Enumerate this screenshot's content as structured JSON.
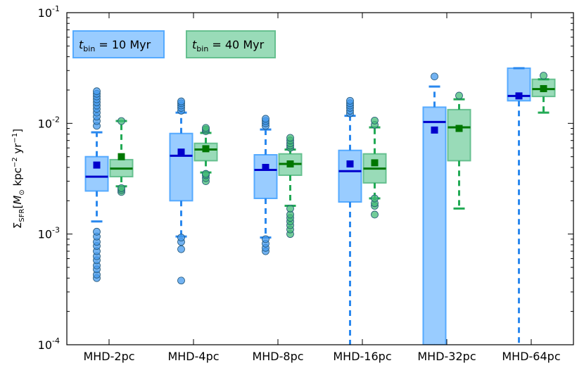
{
  "chart_data": {
    "type": "box",
    "scale": "log",
    "ylim": [
      0.0001,
      0.1
    ],
    "yticks": [
      {
        "value": 0.0001,
        "base": "10",
        "exp": "-4"
      },
      {
        "value": 0.001,
        "base": "10",
        "exp": "-3"
      },
      {
        "value": 0.01,
        "base": "10",
        "exp": "-2"
      },
      {
        "value": 0.1,
        "base": "10",
        "exp": "-1"
      }
    ],
    "ylabel": {
      "sigma": "Σ",
      "sigma_sub": "SFR",
      "open": "[",
      "m": "M",
      "sun": "⊙",
      "unit1": " kpc",
      "exp1": "−2",
      "unit2": " yr",
      "exp2": "−1",
      "close": "]"
    },
    "categories": [
      "MHD-2pc",
      "MHD-4pc",
      "MHD-8pc",
      "MHD-16pc",
      "MHD-32pc",
      "MHD-64pc"
    ],
    "legend": [
      {
        "t": "t",
        "sub": "bin",
        "rest": " = 10 Myr",
        "color": "#3399ff"
      },
      {
        "t": "t",
        "sub": "bin",
        "rest": " = 40 Myr",
        "color": "#33aa66"
      }
    ],
    "series": [
      {
        "name_key": "legend.0",
        "fill": "#99ccff",
        "edge": "#55aaff",
        "line": "#2a88ee",
        "median_color": "#0000cc",
        "mean_color": "#0000cc",
        "flier_color": "#4499ee",
        "boxes": [
          {
            "q1": 0.00245,
            "median": 0.0033,
            "q3": 0.005,
            "whislo": 0.0013,
            "whishi": 0.0083,
            "mean": 0.0042,
            "fliers": [
              0.0004,
              0.00043,
              0.00048,
              0.00052,
              0.00058,
              0.00063,
              0.0007,
              0.00078,
              0.00085,
              0.00095,
              0.00105,
              0.0095,
              0.0105,
              0.0115,
              0.0125,
              0.0135,
              0.0145,
              0.0155,
              0.0165,
              0.0175,
              0.0185,
              0.0195
            ]
          },
          {
            "q1": 0.002,
            "median": 0.0051,
            "q3": 0.0081,
            "whislo": 0.00095,
            "whishi": 0.0125,
            "mean": 0.0055,
            "fliers": [
              0.00038,
              0.00073,
              0.00085,
              0.00093,
              0.013,
              0.0138,
              0.0145,
              0.0152,
              0.0158
            ]
          },
          {
            "q1": 0.0021,
            "median": 0.0038,
            "q3": 0.0052,
            "whislo": 0.00093,
            "whishi": 0.0088,
            "mean": 0.004,
            "fliers": [
              0.0007,
              0.00075,
              0.00082,
              0.0009,
              0.0095,
              0.01,
              0.0105,
              0.011
            ]
          },
          {
            "q1": 0.00195,
            "median": 0.0037,
            "q3": 0.0057,
            "whislo": 0.0001,
            "whishi": 0.0117,
            "mean": 0.0043,
            "fliers": [
              0.0123,
              0.013,
              0.0138,
              0.0145,
              0.0152,
              0.016
            ]
          },
          {
            "q1": 0.0001,
            "median": 0.0103,
            "q3": 0.014,
            "whislo": 0.0001,
            "whishi": 0.0215,
            "mean": 0.0087,
            "fliers": [
              0.0265
            ]
          },
          {
            "q1": 0.016,
            "median": 0.0177,
            "q3": 0.0315,
            "whislo": 0.0001,
            "whishi": 0.0315,
            "mean": 0.0177,
            "fliers": []
          }
        ]
      },
      {
        "name_key": "legend.1",
        "fill": "#99dbb8",
        "edge": "#66c08f",
        "line": "#22aa55",
        "median_color": "#007700",
        "mean_color": "#007700",
        "flier_color": "#44bb77",
        "boxes": [
          {
            "q1": 0.0033,
            "median": 0.0039,
            "q3": 0.0047,
            "whislo": 0.0027,
            "whishi": 0.0105,
            "mean": 0.005,
            "fliers": [
              0.0024,
              0.0025,
              0.0026,
              0.0105
            ]
          },
          {
            "q1": 0.0046,
            "median": 0.0058,
            "q3": 0.0066,
            "whislo": 0.0036,
            "whishi": 0.0082,
            "mean": 0.0059,
            "fliers": [
              0.003,
              0.0032,
              0.0034,
              0.0035,
              0.0085,
              0.0088,
              0.0091
            ]
          },
          {
            "q1": 0.0034,
            "median": 0.0043,
            "q3": 0.0053,
            "whislo": 0.0018,
            "whishi": 0.0058,
            "mean": 0.0043,
            "fliers": [
              0.001,
              0.0011,
              0.0012,
              0.0013,
              0.0014,
              0.0015,
              0.0017,
              0.006,
              0.0063,
              0.0066,
              0.007,
              0.0074
            ]
          },
          {
            "q1": 0.0029,
            "median": 0.0039,
            "q3": 0.0053,
            "whislo": 0.0021,
            "whishi": 0.0092,
            "mean": 0.0044,
            "fliers": [
              0.0015,
              0.0018,
              0.0019,
              0.0021,
              0.0097,
              0.0106
            ]
          },
          {
            "q1": 0.0046,
            "median": 0.0092,
            "q3": 0.0133,
            "whislo": 0.0017,
            "whishi": 0.0165,
            "mean": 0.009,
            "fliers": [
              0.0178
            ]
          },
          {
            "q1": 0.0175,
            "median": 0.0204,
            "q3": 0.025,
            "whislo": 0.0125,
            "whishi": 0.025,
            "mean": 0.0206,
            "fliers": [
              0.027
            ]
          }
        ]
      }
    ]
  }
}
